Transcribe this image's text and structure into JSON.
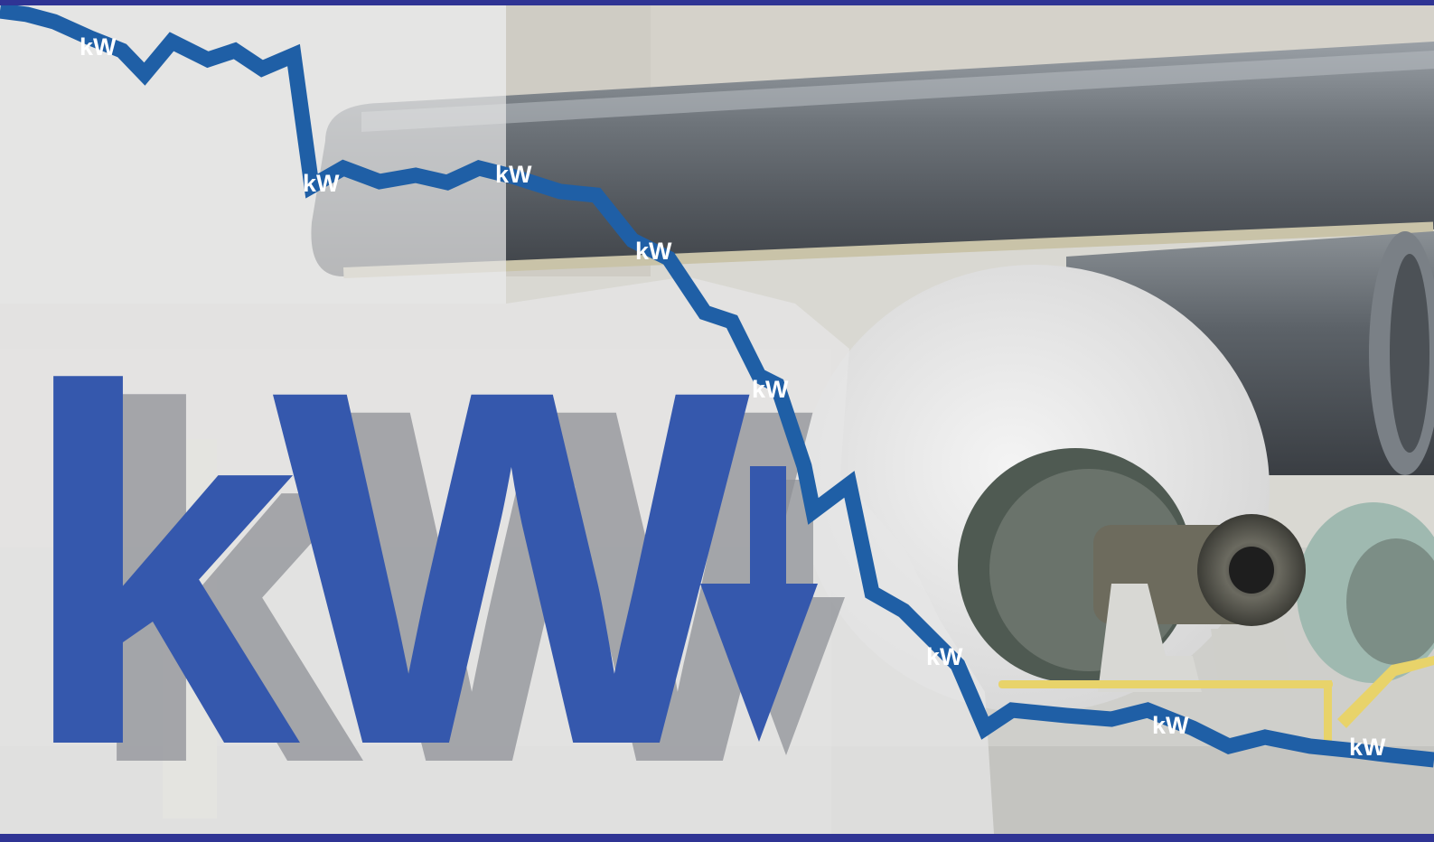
{
  "headline": "kW",
  "line_labels": [
    "kW",
    "kW",
    "kW",
    "kW",
    "kW",
    "kW",
    "kW",
    "kW"
  ],
  "colors": {
    "frame": "#2f3494",
    "accent_blue": "#3558ad",
    "line_blue": "#1f5fa6",
    "shadow_grey": "#8f9197",
    "wash": "#e6e6e6"
  },
  "icons": {
    "arrow": "down-arrow-icon"
  }
}
